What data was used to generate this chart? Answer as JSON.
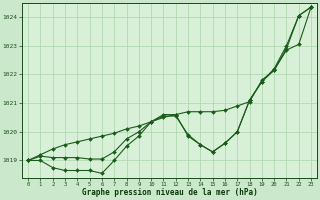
{
  "background_color": "#cce8cc",
  "plot_bg_color": "#d8f0d8",
  "grid_color": "#aad4aa",
  "line_color": "#1a5c1a",
  "marker_color": "#1a5c1a",
  "xlabel": "Graphe pression niveau de la mer (hPa)",
  "xlim": [
    -0.5,
    23.5
  ],
  "ylim": [
    1018.4,
    1024.5
  ],
  "yticks": [
    1019,
    1020,
    1021,
    1022,
    1023,
    1024
  ],
  "xticks": [
    0,
    1,
    2,
    3,
    4,
    5,
    6,
    7,
    8,
    9,
    10,
    11,
    12,
    13,
    14,
    15,
    16,
    17,
    18,
    19,
    20,
    21,
    22,
    23
  ],
  "s1_x": [
    0,
    1,
    2,
    3,
    4,
    5,
    6,
    7,
    8,
    9,
    10,
    11,
    12,
    13,
    14,
    15,
    16,
    17,
    18,
    19,
    20,
    21,
    22,
    23
  ],
  "s1_y": [
    1019.0,
    1019.0,
    1018.75,
    1018.65,
    1018.65,
    1018.65,
    1018.55,
    1019.0,
    1019.5,
    1019.85,
    1020.35,
    1020.6,
    1020.6,
    1019.85,
    1019.55,
    1019.3,
    1019.6,
    1020.0,
    1021.1,
    1021.75,
    1022.2,
    1023.0,
    1024.05,
    1024.35
  ],
  "s2_x": [
    0,
    1,
    2,
    3,
    4,
    5,
    6,
    7,
    8,
    9,
    10,
    11,
    12,
    13,
    14,
    15,
    16,
    17,
    18,
    19,
    20,
    21,
    22,
    23
  ],
  "s2_y": [
    1019.0,
    1019.15,
    1019.1,
    1019.1,
    1019.1,
    1019.05,
    1019.05,
    1019.3,
    1019.75,
    1020.0,
    1020.35,
    1020.55,
    1020.55,
    1019.9,
    1019.55,
    1019.3,
    1019.6,
    1020.0,
    1021.1,
    1021.75,
    1022.15,
    1022.9,
    1024.05,
    1024.35
  ],
  "s3_x": [
    0,
    1,
    2,
    3,
    4,
    5,
    6,
    7,
    8,
    9,
    10,
    11,
    12,
    13,
    14,
    15,
    16,
    17,
    18,
    19,
    20,
    21,
    22,
    23
  ],
  "s3_y": [
    1019.0,
    1019.2,
    1019.4,
    1019.55,
    1019.65,
    1019.75,
    1019.85,
    1019.95,
    1020.1,
    1020.2,
    1020.35,
    1020.5,
    1020.6,
    1020.7,
    1020.7,
    1020.7,
    1020.75,
    1020.9,
    1021.05,
    1021.8,
    1022.15,
    1022.85,
    1023.05,
    1024.35
  ]
}
